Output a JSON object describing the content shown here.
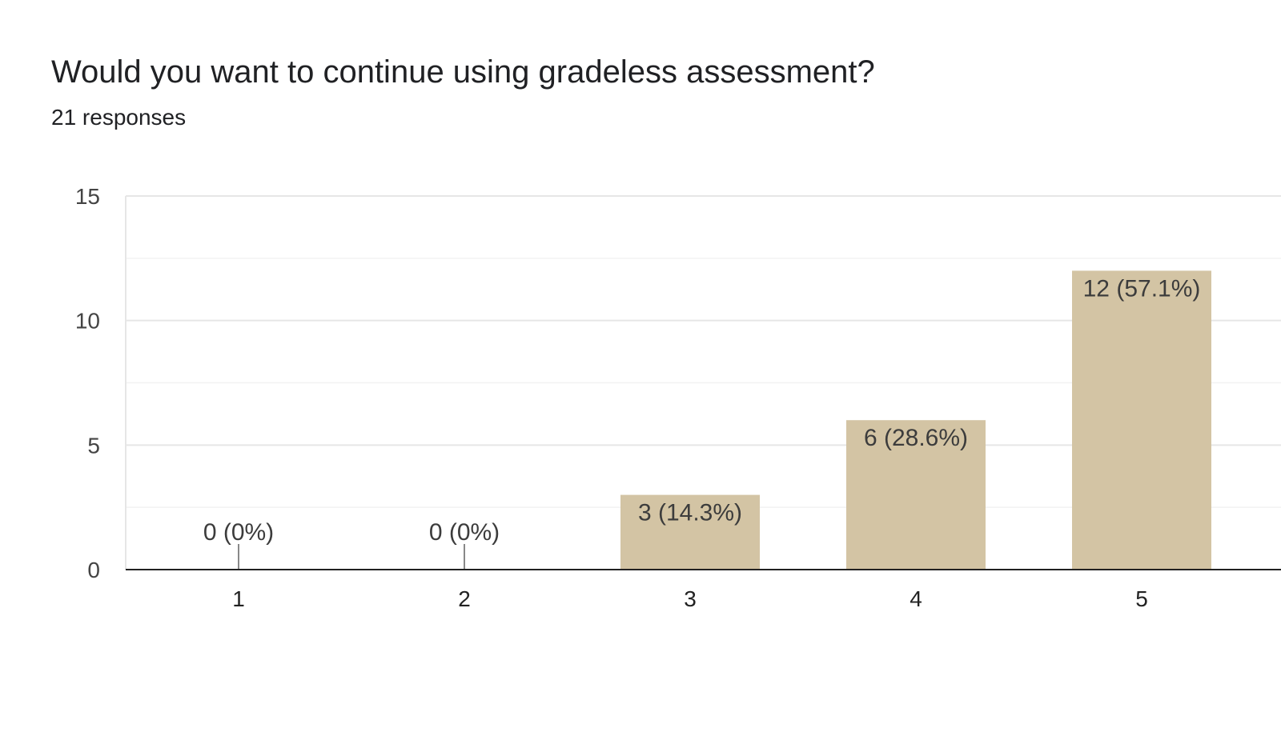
{
  "header": {
    "title": "Would you want to continue using gradeless assessment?",
    "subtitle": "21 responses"
  },
  "chart_data": {
    "type": "bar",
    "title": "Would you want to continue using gradeless assessment?",
    "subtitle": "21 responses",
    "categories": [
      "1",
      "2",
      "3",
      "4",
      "5"
    ],
    "values": [
      0,
      0,
      3,
      6,
      12
    ],
    "data_labels": [
      "0 (0%)",
      "0 (0%)",
      "3 (14.3%)",
      "6 (28.6%)",
      "12 (57.1%)"
    ],
    "yticks": [
      0,
      5,
      10,
      15
    ],
    "ylim": [
      0,
      15
    ],
    "xlabel": "",
    "ylabel": "",
    "grid": true,
    "bar_color": "#d3c4a4"
  }
}
